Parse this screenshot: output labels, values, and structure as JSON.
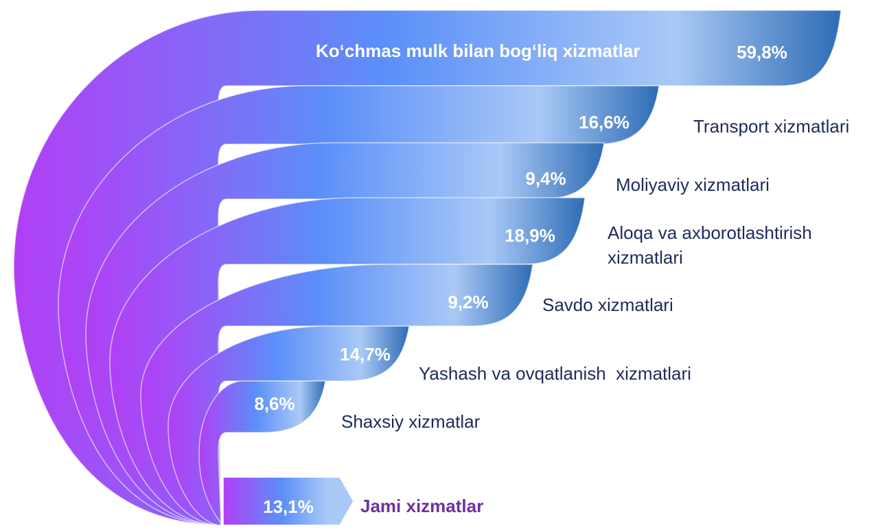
{
  "chart_data": {
    "type": "funnel",
    "categories": [
      "Ko‘chmas mulk bilan bog‘liq xizmatlar",
      "Transport xizmatlari",
      "Moliyaviy xizmatlari",
      "Aloqa va axborotlashtirish xizmatlari",
      "Savdo xizmatlari",
      "Yashash va ovqatlanish  xizmatlari",
      "Shaxsiy xizmatlar",
      "Jami xizmatlar"
    ],
    "values": [
      59.8,
      16.6,
      9.4,
      18.9,
      9.2,
      14.7,
      8.6,
      13.1
    ],
    "value_labels": [
      "59,8%",
      "16,6%",
      "9,4%",
      "18,9%",
      "9,2%",
      "14,7%",
      "8,6%",
      "13,1%"
    ],
    "colors": [
      "#b13ff5",
      "#5b8ff9",
      "#a9c9f6",
      "#2e6cb5"
    ]
  }
}
